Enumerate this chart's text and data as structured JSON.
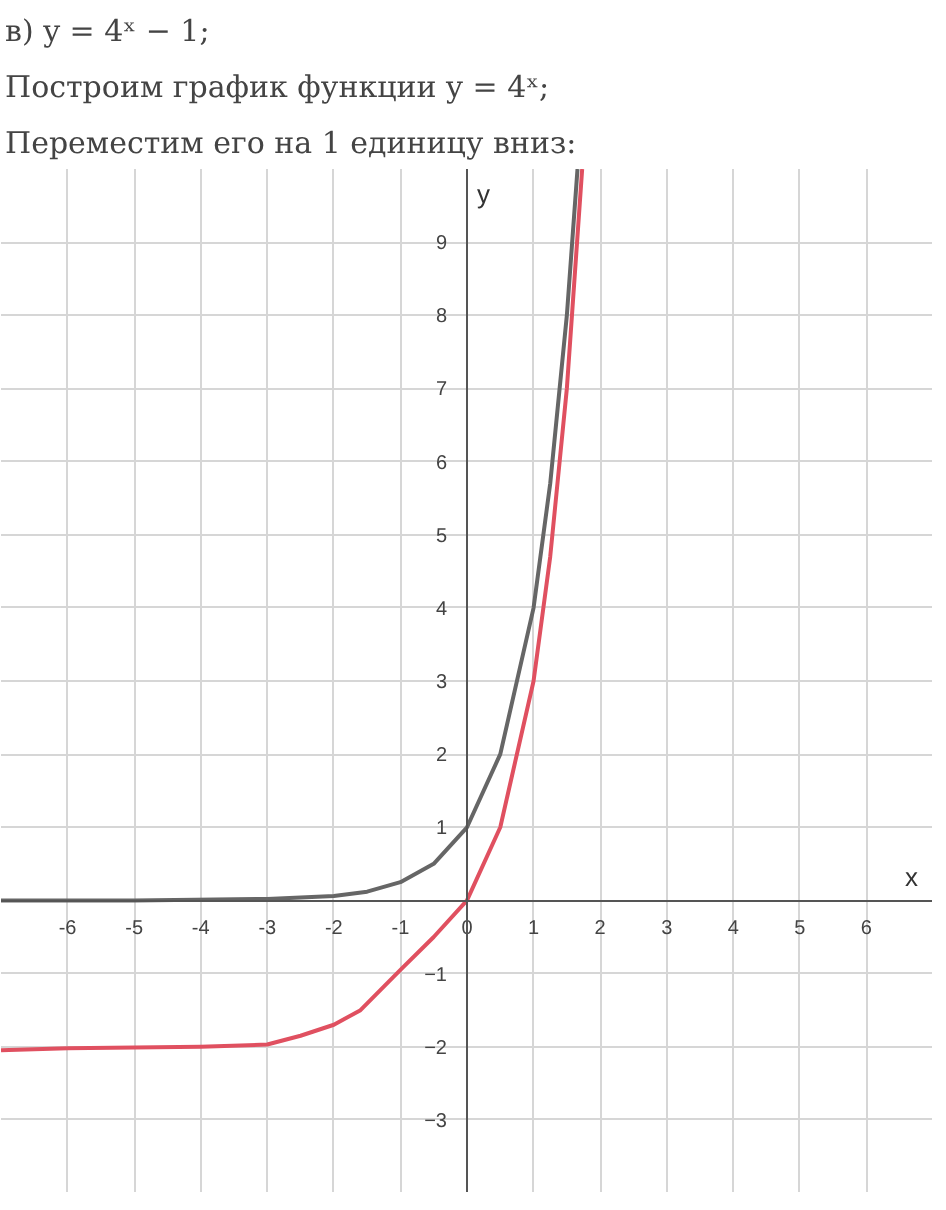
{
  "chart_data": {
    "type": "line",
    "title": "в) y = 4ˣ − 1;",
    "subtitle": "Построим график функции y = 4ˣ;",
    "annotations": [
      "Переместим его на 1 единицу вниз:"
    ],
    "xlabel": "x",
    "ylabel": "y",
    "xlim": [
      -7,
      7
    ],
    "ylim": [
      -4,
      10
    ],
    "xticks": [
      -6,
      -5,
      -4,
      -3,
      -2,
      -1,
      0,
      1,
      2,
      3,
      4,
      5,
      6
    ],
    "yticks": [
      -3,
      -2,
      -1,
      1,
      2,
      3,
      4,
      5,
      6,
      7,
      8,
      9
    ],
    "grid": true,
    "line_style": "solid",
    "marker": "none",
    "series": [
      {
        "color": "#666666",
        "x": [
          -7,
          -5,
          -3,
          -2,
          -1.5,
          -1,
          -0.5,
          0,
          0.5,
          1,
          1.25,
          1.5,
          1.66
        ],
        "values": [
          0,
          0,
          0.02,
          0.06,
          0.12,
          0.25,
          0.5,
          1,
          2,
          4,
          5.7,
          8,
          10
        ]
      },
      {
        "color": "#e05060",
        "x": [
          -7,
          -6,
          -4,
          -3,
          -2.5,
          -2,
          -1.6,
          -1,
          -0.5,
          0,
          0.5,
          1,
          1.25,
          1.5,
          1.73
        ],
        "values": [
          -2.05,
          -2.02,
          -2,
          -1.97,
          -1.85,
          -1.7,
          -1.5,
          -0.95,
          -0.5,
          0,
          1,
          3,
          4.7,
          7,
          10
        ]
      }
    ]
  }
}
